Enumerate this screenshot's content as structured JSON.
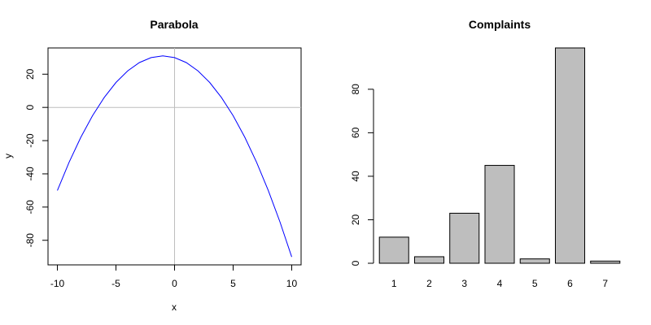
{
  "chart_data": [
    {
      "type": "line",
      "title": "Parabola",
      "xlabel": "x",
      "ylabel": "y",
      "xlim": [
        -10.8,
        10.8
      ],
      "ylim": [
        -94.8,
        35.8
      ],
      "x_ticks": [
        -10,
        -5,
        0,
        5,
        10
      ],
      "x_tick_labels": [
        "-10",
        "-5",
        "0",
        "5",
        "10"
      ],
      "y_ticks": [
        -80,
        -60,
        -40,
        -20,
        0,
        20
      ],
      "y_tick_labels": [
        "-80",
        "-60",
        "-40",
        "-20",
        "0",
        "20"
      ],
      "reference_lines": {
        "h": 0,
        "v": 0,
        "color": "#bebebe"
      },
      "series": [
        {
          "color": "#0000ff",
          "x": [
            -10,
            -9,
            -8,
            -7,
            -6,
            -5,
            -4,
            -3,
            -2,
            -1,
            0,
            1,
            2,
            3,
            4,
            5,
            6,
            7,
            8,
            9,
            10
          ],
          "y": [
            -50,
            -33,
            -18,
            -5,
            6,
            15,
            22,
            27,
            30,
            31,
            30,
            27,
            22,
            15,
            6,
            -5,
            -18,
            -33,
            -50,
            -69,
            -90
          ]
        }
      ],
      "grid": false
    },
    {
      "type": "bar",
      "title": "Complaints",
      "categories": [
        "1",
        "2",
        "3",
        "4",
        "5",
        "6",
        "7"
      ],
      "values": [
        12,
        3,
        23,
        45,
        2,
        99,
        1
      ],
      "ylim": [
        0,
        99
      ],
      "y_ticks": [
        0,
        20,
        40,
        60,
        80
      ],
      "y_tick_labels": [
        "0",
        "20",
        "40",
        "60",
        "80"
      ],
      "bar_color": "#bebebe",
      "xlabel": "",
      "ylabel": "",
      "grid": false
    }
  ]
}
